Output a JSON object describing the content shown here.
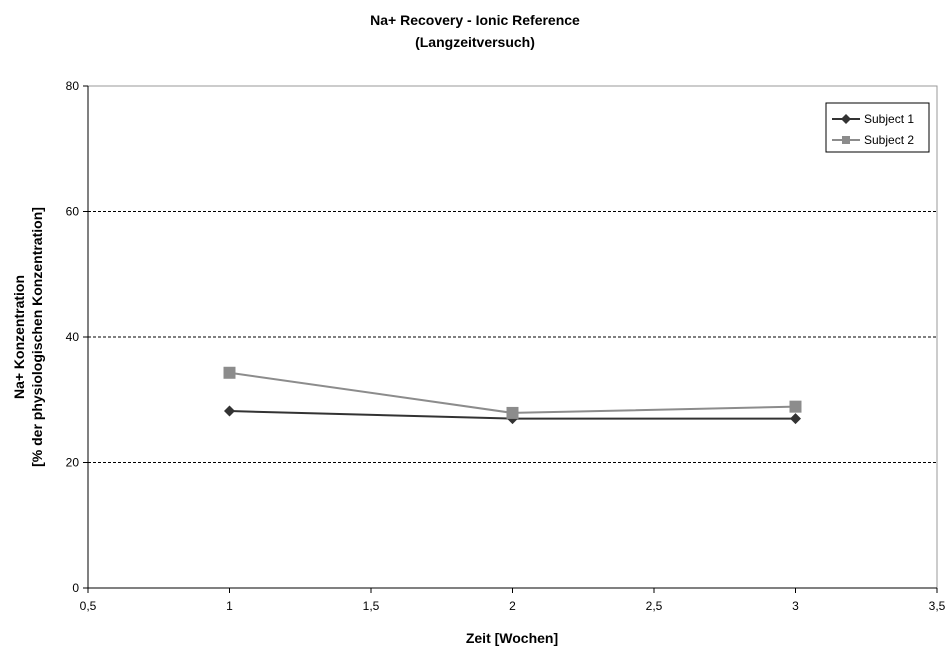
{
  "chart_data": {
    "type": "line",
    "title": "Na+ Recovery - Ionic Reference",
    "subtitle": "(Langzeitversuch)",
    "xlabel": "Zeit [Wochen]",
    "ylabel": "Na+ Konzentration",
    "ylabel2": "[% der physiologischen Konzentration]",
    "xlim": [
      0.5,
      3.5
    ],
    "ylim": [
      0,
      80
    ],
    "xticks": [
      0.5,
      1,
      1.5,
      2,
      2.5,
      3,
      3.5
    ],
    "xtick_labels": [
      "0,5",
      "1",
      "1,5",
      "2",
      "2,5",
      "3",
      "3,5"
    ],
    "yticks": [
      0,
      20,
      40,
      60,
      80
    ],
    "ytick_labels": [
      "0",
      "20",
      "40",
      "60",
      "80"
    ],
    "grid": "horizontal dashed at 20, 40, 60",
    "legend_position": "top-right",
    "series": [
      {
        "name": "Subject 1",
        "marker": "diamond",
        "color": "#333333",
        "x": [
          1,
          2,
          3
        ],
        "y": [
          28.2,
          27.0,
          27.0
        ]
      },
      {
        "name": "Subject 2",
        "marker": "square",
        "color": "#8c8c8c",
        "x": [
          1,
          2,
          3
        ],
        "y": [
          34.3,
          27.9,
          28.9
        ]
      }
    ]
  }
}
